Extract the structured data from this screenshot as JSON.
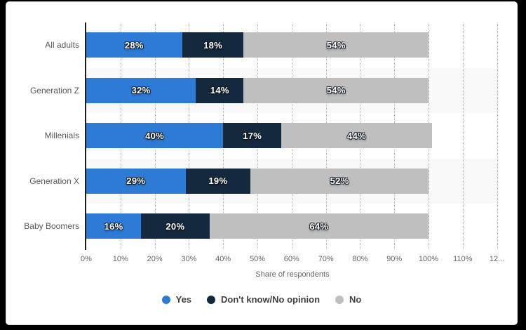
{
  "chart_data": {
    "type": "bar",
    "orientation": "horizontal",
    "stacked": true,
    "categories": [
      "All adults",
      "Generation Z",
      "Millenials",
      "Generation X",
      "Baby Boomers"
    ],
    "series": [
      {
        "name": "Yes",
        "color": "#2e7bd6",
        "values": [
          28,
          32,
          40,
          29,
          16
        ]
      },
      {
        "name": "Don't know/No opinion",
        "color": "#15293e",
        "values": [
          18,
          14,
          17,
          19,
          20
        ]
      },
      {
        "name": "No",
        "color": "#bfbfbf",
        "values": [
          54,
          54,
          44,
          52,
          64
        ]
      }
    ],
    "value_suffix": "%",
    "xlabel": "Share of respondents",
    "x_ticks": [
      "0%",
      "10%",
      "20%",
      "30%",
      "40%",
      "50%",
      "60%",
      "70%",
      "80%",
      "90%",
      "100%",
      "110%",
      "12..."
    ],
    "xlim": [
      0,
      120
    ],
    "grid": "vertical dotted gridlines every 10%",
    "legend_position": "bottom",
    "styles": {
      "row_stripe_color": "#f9f9f9",
      "gridline_color": "#bdbdbd",
      "axis_line_color": "#1c1c1c",
      "tick_label_color": "#666666",
      "category_label_color": "#595959",
      "legend_text_color": "#404040",
      "card_background": "#ffffff",
      "page_background": "#000000"
    }
  }
}
